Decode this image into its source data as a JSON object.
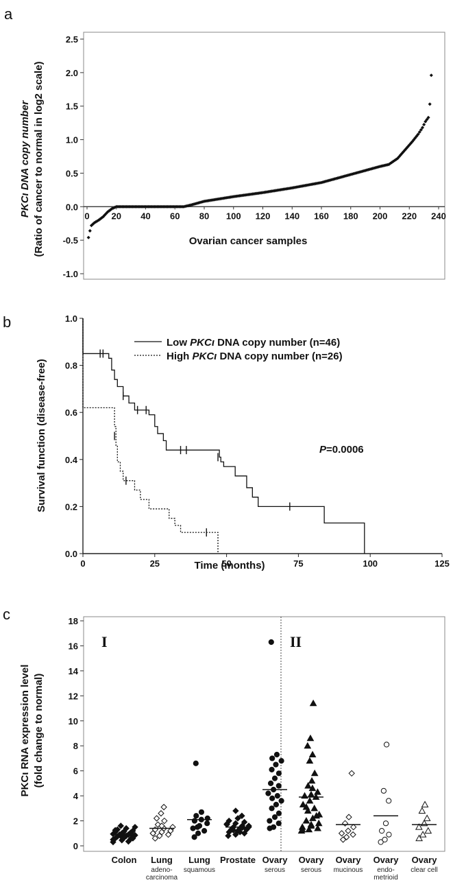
{
  "panels": {
    "a": {
      "label": "a"
    },
    "b": {
      "label": "b"
    },
    "c": {
      "label": "c"
    }
  },
  "chart_data": [
    {
      "panel": "a",
      "type": "scatter",
      "xlabel": "Ovarian cancer samples",
      "ylabel_line1": "PKCι DNA copy number",
      "ylabel_line2": "(Ratio of cancer to normal in log2 scale)",
      "xlim": [
        0,
        240
      ],
      "ylim": [
        -1.0,
        2.5
      ],
      "xticks": [
        0,
        20,
        40,
        60,
        80,
        100,
        120,
        140,
        160,
        180,
        200,
        220,
        240
      ],
      "yticks": [
        -1.0,
        -0.5,
        0.0,
        0.5,
        1.0,
        1.5,
        2.0,
        2.5
      ],
      "xtick_labels": [
        "0",
        "20",
        "40",
        "60",
        "80",
        "100",
        "120",
        "140",
        "160",
        "180",
        "200",
        "220",
        "240"
      ],
      "ytick_labels": [
        "-1.0",
        "-0.5",
        "0.0",
        "0.5",
        "1.0",
        "1.5",
        "2.0",
        "2.5"
      ],
      "curve": [
        [
          1,
          -0.46
        ],
        [
          2,
          -0.36
        ],
        [
          3,
          -0.28
        ],
        [
          5,
          -0.24
        ],
        [
          8,
          -0.2
        ],
        [
          11,
          -0.15
        ],
        [
          14,
          -0.08
        ],
        [
          17,
          -0.03
        ],
        [
          20,
          0.0
        ],
        [
          66,
          0.0
        ],
        [
          70,
          0.02
        ],
        [
          80,
          0.08
        ],
        [
          100,
          0.15
        ],
        [
          120,
          0.21
        ],
        [
          140,
          0.28
        ],
        [
          160,
          0.36
        ],
        [
          180,
          0.48
        ],
        [
          200,
          0.6
        ],
        [
          206,
          0.63
        ],
        [
          212,
          0.72
        ],
        [
          218,
          0.87
        ],
        [
          222,
          0.97
        ],
        [
          226,
          1.08
        ],
        [
          229,
          1.18
        ],
        [
          231,
          1.27
        ],
        [
          233,
          1.33
        ],
        [
          234,
          1.53
        ],
        [
          235,
          1.96
        ]
      ],
      "n_points": 235
    },
    {
      "panel": "b",
      "type": "line",
      "xlabel": "Time (months)",
      "ylabel": "Survival function (disease-free)",
      "xlim": [
        0,
        125
      ],
      "ylim": [
        0,
        1.0
      ],
      "xticks": [
        0,
        25,
        50,
        75,
        100,
        125
      ],
      "yticks": [
        0.0,
        0.2,
        0.4,
        0.6,
        0.8,
        1.0
      ],
      "xtick_labels": [
        "0",
        "25",
        "50",
        "75",
        "100",
        "125"
      ],
      "ytick_labels": [
        "0.0",
        "0.2",
        "0.4",
        "0.6",
        "0.8",
        "1.0"
      ],
      "annotation_prefix": "P",
      "annotation_value": "=0.0006",
      "series": [
        {
          "legend_pre": "Low ",
          "legend_gene": "PKCι",
          "legend_post": " DNA copy number (n=46)",
          "style": "solid",
          "steps": [
            [
              0,
              1.0
            ],
            [
              0,
              0.85
            ],
            [
              8,
              0.85
            ],
            [
              9,
              0.83
            ],
            [
              10,
              0.78
            ],
            [
              11,
              0.74
            ],
            [
              12,
              0.71
            ],
            [
              14,
              0.67
            ],
            [
              16,
              0.64
            ],
            [
              18,
              0.61
            ],
            [
              23,
              0.59
            ],
            [
              25,
              0.54
            ],
            [
              26,
              0.51
            ],
            [
              28,
              0.48
            ],
            [
              29,
              0.44
            ],
            [
              47,
              0.44
            ],
            [
              47.5,
              0.41
            ],
            [
              48,
              0.39
            ],
            [
              49,
              0.37
            ],
            [
              53,
              0.33
            ],
            [
              57,
              0.28
            ],
            [
              59,
              0.24
            ],
            [
              61,
              0.2
            ],
            [
              84,
              0.2
            ],
            [
              84,
              0.13
            ],
            [
              98,
              0.13
            ],
            [
              98,
              0.0
            ]
          ],
          "censors": [
            [
              6,
              0.85
            ],
            [
              7,
              0.85
            ],
            [
              14,
              0.67
            ],
            [
              19,
              0.61
            ],
            [
              22,
              0.61
            ],
            [
              34,
              0.44
            ],
            [
              36,
              0.44
            ],
            [
              47,
              0.41
            ],
            [
              72,
              0.2
            ]
          ]
        },
        {
          "legend_pre": "High ",
          "legend_gene": "PKCι",
          "legend_post": " DNA copy number (n=26)",
          "style": "dotted",
          "steps": [
            [
              0,
              1.0
            ],
            [
              0,
              0.62
            ],
            [
              10,
              0.62
            ],
            [
              11,
              0.54
            ],
            [
              11.5,
              0.46
            ],
            [
              12,
              0.39
            ],
            [
              13,
              0.35
            ],
            [
              14,
              0.31
            ],
            [
              18,
              0.27
            ],
            [
              20,
              0.23
            ],
            [
              23,
              0.19
            ],
            [
              30,
              0.15
            ],
            [
              32,
              0.12
            ],
            [
              34,
              0.09
            ],
            [
              47,
              0.09
            ],
            [
              47,
              0.0
            ]
          ],
          "censors": [
            [
              11,
              0.5
            ],
            [
              15,
              0.31
            ],
            [
              43,
              0.09
            ]
          ]
        }
      ]
    },
    {
      "panel": "c",
      "type": "scatter",
      "ylabel_line1": "PKCι RNA expression level",
      "ylabel_line2": "(fold change to normal)",
      "ylim": [
        0,
        18
      ],
      "yticks": [
        0,
        2,
        4,
        6,
        8,
        10,
        12,
        14,
        16,
        18
      ],
      "ytick_labels": [
        "0",
        "2",
        "4",
        "6",
        "8",
        "10",
        "12",
        "14",
        "16",
        "18"
      ],
      "group_labels": [
        "I",
        "II"
      ],
      "categories": [
        {
          "label": "Colon",
          "sub": [],
          "marker": "diamond-filled",
          "median": 0.9,
          "values": [
            0.3,
            0.45,
            0.55,
            0.6,
            0.65,
            0.7,
            0.75,
            0.8,
            0.85,
            0.9,
            0.9,
            0.95,
            1.0,
            1.05,
            1.1,
            1.15,
            1.2,
            1.3,
            1.4,
            1.5,
            1.6,
            0.35,
            0.5,
            0.7,
            1.0,
            1.25,
            0.8,
            0.6
          ]
        },
        {
          "label": "Lung",
          "sub": [
            "adeno-",
            "carcinoma"
          ],
          "marker": "diamond-open",
          "median": 1.4,
          "values": [
            0.6,
            0.8,
            0.9,
            1.0,
            1.1,
            1.2,
            1.3,
            1.4,
            1.5,
            1.7,
            2.0,
            2.2,
            2.6,
            3.1,
            1.0,
            1.6
          ]
        },
        {
          "label": "Lung",
          "sub": [
            "squamous"
          ],
          "marker": "circle-filled",
          "median": 2.1,
          "values": [
            0.7,
            1.0,
            1.2,
            1.4,
            1.6,
            1.8,
            2.0,
            2.1,
            2.2,
            2.4,
            2.7,
            6.6,
            1.5
          ]
        },
        {
          "label": "Prostate",
          "sub": [],
          "marker": "diamond-filled",
          "median": 1.5,
          "values": [
            0.8,
            0.9,
            1.0,
            1.1,
            1.2,
            1.3,
            1.3,
            1.4,
            1.5,
            1.5,
            1.6,
            1.7,
            1.8,
            1.9,
            2.0,
            2.2,
            2.4,
            2.8,
            1.1,
            1.6,
            1.25,
            1.45,
            1.75
          ]
        },
        {
          "label": "Ovary",
          "sub": [
            "serous"
          ],
          "marker": "circle-filled",
          "median": 4.5,
          "values": [
            1.4,
            1.5,
            1.8,
            2.0,
            2.3,
            2.6,
            3.0,
            3.3,
            3.6,
            3.8,
            4.0,
            4.2,
            4.5,
            4.8,
            5.0,
            5.4,
            5.8,
            6.1,
            6.5,
            6.8,
            7.0,
            7.3,
            16.3
          ]
        },
        {
          "label": "Ovary",
          "sub": [
            "serous"
          ],
          "marker": "triangle-filled",
          "median": 3.9,
          "values": [
            1.2,
            1.3,
            1.4,
            1.5,
            1.6,
            1.8,
            2.0,
            2.2,
            2.5,
            2.8,
            3.0,
            3.3,
            3.6,
            3.9,
            4.0,
            4.1,
            4.3,
            4.8,
            5.2,
            5.8,
            6.8,
            7.3,
            8.0,
            8.6,
            11.4,
            1.3,
            1.7,
            2.4,
            3.1,
            4.6
          ]
        },
        {
          "label": "Ovary",
          "sub": [
            "mucinous"
          ],
          "marker": "diamond-open",
          "median": 1.7,
          "values": [
            0.5,
            0.7,
            0.9,
            1.0,
            1.2,
            1.5,
            1.8,
            2.3,
            5.8
          ]
        },
        {
          "label": "Ovary",
          "sub": [
            "endo-",
            "metrioid"
          ],
          "marker": "circle-open",
          "median": 2.4,
          "values": [
            0.3,
            0.5,
            0.9,
            1.2,
            1.8,
            3.6,
            4.4,
            8.1
          ]
        },
        {
          "label": "Ovary",
          "sub": [
            "clear cell"
          ],
          "marker": "triangle-open",
          "median": 1.7,
          "values": [
            0.6,
            0.9,
            1.2,
            1.5,
            1.8,
            2.2,
            2.8,
            3.3
          ]
        }
      ]
    }
  ]
}
